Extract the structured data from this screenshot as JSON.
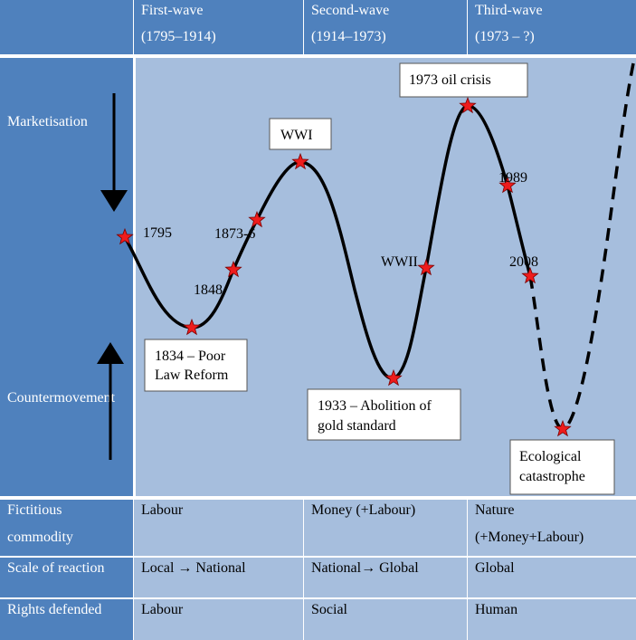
{
  "header": {
    "first": {
      "title": "First-wave",
      "period": "(1795–1914)"
    },
    "second": {
      "title": "Second-wave",
      "period": "(1914–1973)"
    },
    "third": {
      "title": "Third-wave",
      "period": "(1973 – ?)"
    }
  },
  "side": {
    "marketisation": "Marketisation",
    "countermovement": "Countermovement"
  },
  "chart_data": {
    "type": "line",
    "points": [
      {
        "label": "1795",
        "level": 0.57
      },
      {
        "label": "1834 – Poor Law Reform",
        "level": 0.22
      },
      {
        "label": "1848",
        "level": 0.45
      },
      {
        "label": "1873-6",
        "level": 0.59
      },
      {
        "label": "WWI",
        "level": 0.8
      },
      {
        "label": "1933 – Abolition of gold standard",
        "level": 0.1
      },
      {
        "label": "WWII",
        "level": 0.49
      },
      {
        "label": "1973 oil crisis",
        "level": 0.95
      },
      {
        "label": "1989",
        "level": 0.71
      },
      {
        "label": "2008",
        "level": 0.48
      },
      {
        "label": "Ecological catastrophe",
        "level": 0.0
      }
    ],
    "dashed_from": "2008"
  },
  "labels": {
    "y1795": "1795",
    "y1848": "1848",
    "y1873": "1873-6",
    "wwii": "WWII",
    "y1989": "1989",
    "y2008": "2008",
    "wwi": "WWI",
    "oil": "1973 oil crisis",
    "poor1": "1834 – Poor",
    "poor2": "Law Reform",
    "gold1": "1933 – Abolition of",
    "gold2": "gold standard",
    "eco1": "Ecological",
    "eco2": "catastrophe"
  },
  "rows": [
    {
      "label": [
        "Fictitious",
        "commodity"
      ],
      "c1": [
        "Labour"
      ],
      "c2": [
        "Money (+Labour)"
      ],
      "c3": [
        "Nature",
        "(+Money+Labour)"
      ]
    },
    {
      "label": [
        "Scale of reaction"
      ],
      "c1": [
        "Local → National"
      ],
      "c2": [
        "National→ Global"
      ],
      "c3": [
        "Global"
      ]
    },
    {
      "label": [
        "Rights defended"
      ],
      "c1": [
        "Labour"
      ],
      "c2": [
        "Social"
      ],
      "c3": [
        "Human"
      ]
    }
  ]
}
